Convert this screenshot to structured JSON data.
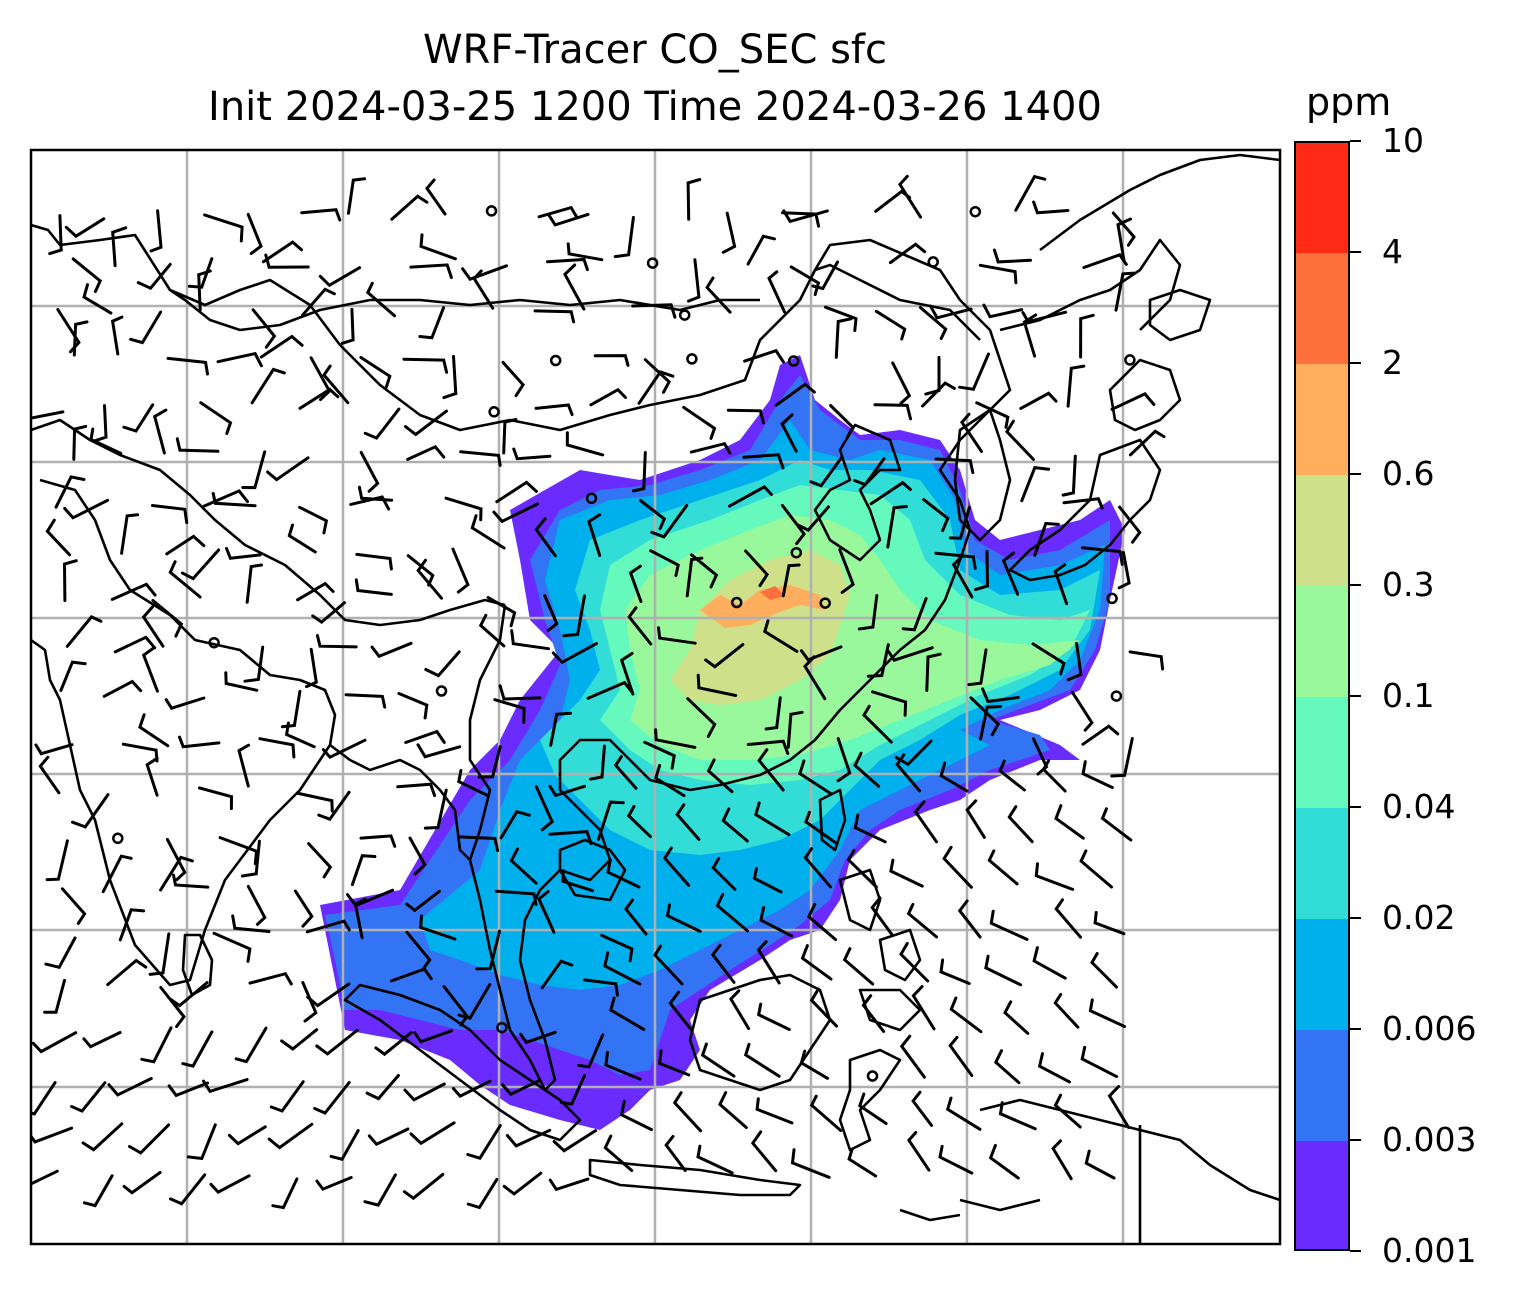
{
  "title": {
    "line1": "WRF-Tracer CO_SEC sfc",
    "line2": "Init 2024-03-25 1200 Time 2024-03-26 1400"
  },
  "colorbar": {
    "unit": "ppm",
    "levels": [
      "0.001",
      "0.003",
      "0.006",
      "0.02",
      "0.04",
      "0.1",
      "0.3",
      "0.6",
      "2",
      "4",
      "10"
    ],
    "colors": [
      "#6a2bff",
      "#3274f4",
      "#00b0ec",
      "#31ddd6",
      "#66f9bd",
      "#99f89c",
      "#cee08a",
      "#ffae5e",
      "#ff6f3b",
      "#ff2a16"
    ]
  },
  "map": {
    "gridlines": true,
    "gridline_color": "#b0b0b0",
    "coastline_color": "#000000"
  }
}
